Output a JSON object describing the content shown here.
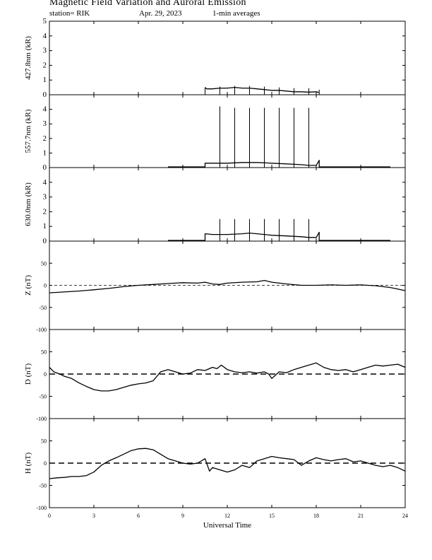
{
  "header": {
    "title": "Magnetic Field Variation and Auroral Emission",
    "station": "station= RIK",
    "date": "Apr. 29, 2023",
    "averaging": "1-min averages"
  },
  "chart_data": {
    "type": "line",
    "xlabel": "Universal Time",
    "xlim": [
      0,
      24
    ],
    "xticks": [
      0,
      3,
      6,
      9,
      12,
      15,
      18,
      21,
      24
    ],
    "panels": [
      {
        "ylabel": "427.8nm (kR)",
        "ylim": [
          0,
          5
        ],
        "yticks": [
          0,
          1,
          2,
          3,
          4,
          5
        ],
        "series": {
          "x": [
            10.5,
            10.6,
            11.0,
            11.5,
            12.0,
            12.5,
            13.0,
            13.5,
            14.0,
            14.5,
            15.0,
            15.5,
            16.0,
            16.5,
            17.0,
            17.5,
            18.0,
            18.2
          ],
          "y": [
            0.5,
            0.4,
            0.4,
            0.45,
            0.45,
            0.5,
            0.45,
            0.45,
            0.4,
            0.35,
            0.3,
            0.3,
            0.25,
            0.2,
            0.2,
            0.18,
            0.2,
            0.15
          ]
        },
        "spikes": [
          {
            "x": 10.5,
            "y": 0.5
          },
          {
            "x": 11.5,
            "y": 0.55
          },
          {
            "x": 12.5,
            "y": 0.6
          },
          {
            "x": 13.5,
            "y": 0.6
          },
          {
            "x": 14.5,
            "y": 0.55
          },
          {
            "x": 15.5,
            "y": 0.5
          },
          {
            "x": 16.5,
            "y": 0.45
          },
          {
            "x": 17.5,
            "y": 0.45
          },
          {
            "x": 18.2,
            "y": 0.35
          }
        ],
        "dashed_zero": false
      },
      {
        "ylabel": "557.7nm (kR)",
        "ylim": [
          0,
          5
        ],
        "yticks": [
          0,
          1,
          2,
          3,
          4
        ],
        "series": {
          "x": [
            8.0,
            10.5,
            10.5,
            11.0,
            12.0,
            13.0,
            13.5,
            14.0,
            15.0,
            16.0,
            17.0,
            17.5,
            18.0,
            18.2,
            18.2,
            23.0
          ],
          "y": [
            0.05,
            0.05,
            0.3,
            0.3,
            0.3,
            0.35,
            0.35,
            0.35,
            0.3,
            0.25,
            0.2,
            0.15,
            0.15,
            0.5,
            0.05,
            0.05
          ]
        },
        "spikes": [
          {
            "x": 11.5,
            "y": 4.2
          },
          {
            "x": 12.5,
            "y": 4.1
          },
          {
            "x": 13.5,
            "y": 4.1
          },
          {
            "x": 14.5,
            "y": 4.1
          },
          {
            "x": 15.5,
            "y": 4.1
          },
          {
            "x": 16.5,
            "y": 4.1
          },
          {
            "x": 17.5,
            "y": 4.1
          }
        ],
        "dashed_zero": false
      },
      {
        "ylabel": "630.0nm (kR)",
        "ylim": [
          0,
          5
        ],
        "yticks": [
          0,
          1,
          2,
          3,
          4
        ],
        "series": {
          "x": [
            8.0,
            10.5,
            10.5,
            11.0,
            12.0,
            13.0,
            13.5,
            14.0,
            15.0,
            16.0,
            17.0,
            17.5,
            18.0,
            18.2,
            18.2,
            23.0
          ],
          "y": [
            0.05,
            0.05,
            0.5,
            0.45,
            0.45,
            0.5,
            0.55,
            0.5,
            0.4,
            0.35,
            0.3,
            0.25,
            0.25,
            0.6,
            0.05,
            0.05
          ]
        },
        "spikes": [
          {
            "x": 11.5,
            "y": 1.5
          },
          {
            "x": 12.5,
            "y": 1.5
          },
          {
            "x": 13.5,
            "y": 1.5
          },
          {
            "x": 14.5,
            "y": 1.5
          },
          {
            "x": 15.5,
            "y": 1.5
          },
          {
            "x": 16.5,
            "y": 1.5
          },
          {
            "x": 17.5,
            "y": 1.5
          }
        ],
        "dashed_zero": false
      },
      {
        "ylabel": "Z (nT)",
        "ylim": [
          -100,
          100
        ],
        "yticks": [
          -100,
          -50,
          0,
          50
        ],
        "series": {
          "x": [
            0,
            1,
            2,
            3,
            4,
            5,
            6,
            7,
            8,
            9,
            10,
            10.5,
            11,
            11.5,
            12,
            13,
            14,
            14.5,
            15,
            16,
            17,
            18,
            19,
            20,
            21,
            22,
            23,
            24
          ],
          "y": [
            -17,
            -15,
            -13,
            -10,
            -7,
            -3,
            0,
            2,
            4,
            6,
            5,
            7,
            3,
            2,
            5,
            7,
            8,
            11,
            7,
            3,
            0,
            0,
            1,
            0,
            1,
            -1,
            -5,
            -12
          ]
        },
        "spikes": [],
        "dashed_zero": true
      },
      {
        "ylabel": "D (nT)",
        "ylim": [
          -100,
          100
        ],
        "yticks": [
          -100,
          -50,
          0,
          50
        ],
        "series": {
          "x": [
            0,
            0.3,
            0.7,
            1.0,
            1.5,
            2.0,
            2.5,
            3.0,
            3.5,
            4.0,
            4.5,
            5.0,
            5.5,
            6.0,
            6.5,
            7.0,
            7.5,
            8.0,
            8.5,
            9.0,
            9.5,
            10.0,
            10.5,
            11.0,
            11.3,
            11.6,
            12.0,
            12.5,
            13.0,
            13.5,
            14.0,
            14.5,
            14.8,
            15.0,
            15.5,
            16.0,
            16.5,
            17.0,
            17.5,
            18.0,
            18.5,
            19.0,
            19.5,
            20.0,
            20.5,
            21.0,
            21.5,
            22.0,
            22.5,
            23.0,
            23.5,
            24.0
          ],
          "y": [
            15,
            5,
            0,
            -5,
            -10,
            -20,
            -28,
            -35,
            -38,
            -38,
            -35,
            -30,
            -25,
            -22,
            -20,
            -15,
            5,
            10,
            5,
            0,
            2,
            10,
            8,
            15,
            12,
            20,
            10,
            5,
            3,
            5,
            2,
            5,
            0,
            -10,
            5,
            3,
            10,
            15,
            20,
            25,
            15,
            10,
            8,
            10,
            5,
            10,
            15,
            20,
            18,
            20,
            22,
            15
          ]
        },
        "spikes": [],
        "dashed_zero": true
      },
      {
        "ylabel": "H (nT)",
        "ylim": [
          -100,
          100
        ],
        "yticks": [
          -100,
          -50,
          0,
          50
        ],
        "series": {
          "x": [
            0,
            0.5,
            1.0,
            1.5,
            2.0,
            2.5,
            3.0,
            3.5,
            4.0,
            4.5,
            5.0,
            5.5,
            6.0,
            6.5,
            7.0,
            7.5,
            8.0,
            8.5,
            9.0,
            9.5,
            10.0,
            10.5,
            10.8,
            11.0,
            11.5,
            12.0,
            12.5,
            13.0,
            13.5,
            14.0,
            14.5,
            15.0,
            15.5,
            16.0,
            16.5,
            17.0,
            17.5,
            18.0,
            18.5,
            19.0,
            19.5,
            20.0,
            20.5,
            21.0,
            21.5,
            22.0,
            22.5,
            23.0,
            23.5,
            24.0
          ],
          "y": [
            -35,
            -33,
            -32,
            -30,
            -30,
            -28,
            -20,
            -5,
            5,
            12,
            20,
            28,
            32,
            33,
            30,
            20,
            10,
            5,
            0,
            -2,
            0,
            10,
            -18,
            -10,
            -15,
            -20,
            -15,
            -5,
            -10,
            5,
            10,
            15,
            12,
            10,
            8,
            -5,
            5,
            12,
            8,
            5,
            8,
            10,
            3,
            5,
            0,
            -5,
            -8,
            -5,
            -10,
            -18
          ]
        },
        "spikes": [],
        "dashed_zero": true
      }
    ]
  }
}
